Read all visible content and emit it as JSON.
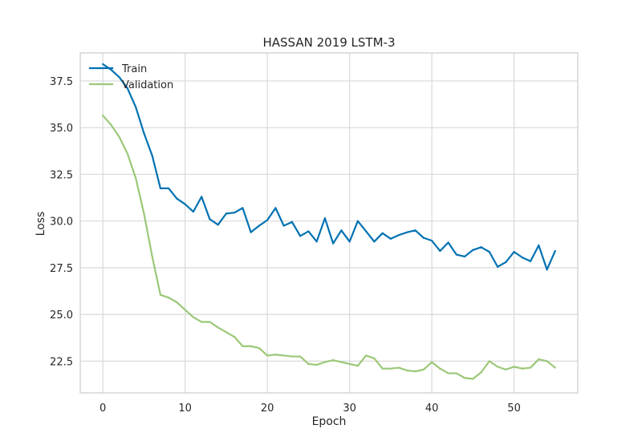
{
  "chart_data": {
    "type": "line",
    "title": "HASSAN 2019 LSTM-3",
    "xlabel": "Epoch",
    "ylabel": "Loss",
    "xlim": [
      -2.75,
      57.75
    ],
    "ylim": [
      20.8,
      39.0
    ],
    "xticks": [
      0,
      10,
      20,
      30,
      40,
      50
    ],
    "yticks": [
      22.5,
      25.0,
      27.5,
      30.0,
      32.5,
      35.0,
      37.5
    ],
    "grid": true,
    "legend_position": "top-left",
    "x": [
      0,
      1,
      2,
      3,
      4,
      5,
      6,
      7,
      8,
      9,
      10,
      11,
      12,
      13,
      14,
      15,
      16,
      17,
      18,
      19,
      20,
      21,
      22,
      23,
      24,
      25,
      26,
      27,
      28,
      29,
      30,
      31,
      32,
      33,
      34,
      35,
      36,
      37,
      38,
      39,
      40,
      41,
      42,
      43,
      44,
      45,
      46,
      47,
      48,
      49,
      50,
      51,
      52,
      53,
      54,
      55
    ],
    "series": [
      {
        "name": "Train",
        "color": "#0072B2",
        "values": [
          38.4,
          38.1,
          37.7,
          37.1,
          36.1,
          34.7,
          33.5,
          31.75,
          31.75,
          31.2,
          30.9,
          30.5,
          31.3,
          30.1,
          29.8,
          30.4,
          30.45,
          30.7,
          29.4,
          29.75,
          30.05,
          30.7,
          29.75,
          29.95,
          29.2,
          29.45,
          28.9,
          30.15,
          28.8,
          29.5,
          28.9,
          30.0,
          29.45,
          28.9,
          29.35,
          29.05,
          29.25,
          29.4,
          29.5,
          29.1,
          28.95,
          28.4,
          28.85,
          28.2,
          28.1,
          28.45,
          28.6,
          28.35,
          27.55,
          27.8,
          28.35,
          28.05,
          27.85,
          28.7,
          27.4,
          28.4
        ]
      },
      {
        "name": "Validation",
        "color": "#9BC878",
        "values": [
          35.65,
          35.15,
          34.5,
          33.6,
          32.3,
          30.4,
          28.1,
          26.05,
          25.9,
          25.65,
          25.25,
          24.85,
          24.6,
          24.6,
          24.3,
          24.05,
          23.8,
          23.3,
          23.3,
          23.2,
          22.8,
          22.85,
          22.8,
          22.75,
          22.75,
          22.35,
          22.3,
          22.45,
          22.55,
          22.45,
          22.35,
          22.25,
          22.8,
          22.65,
          22.1,
          22.1,
          22.15,
          22.0,
          21.95,
          22.05,
          22.45,
          22.1,
          21.85,
          21.85,
          21.6,
          21.55,
          21.9,
          22.5,
          22.2,
          22.05,
          22.2,
          22.1,
          22.15,
          22.6,
          22.5,
          22.15
        ]
      }
    ]
  }
}
